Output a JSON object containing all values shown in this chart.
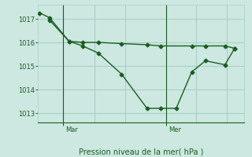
{
  "background_color": "#cce8e0",
  "grid_color": "#aacfc8",
  "line_color": "#1a5e20",
  "xlabel": "Pression niveau de la mer( hPa )",
  "ylim": [
    1012.6,
    1017.6
  ],
  "yticks": [
    1013,
    1014,
    1015,
    1016,
    1017
  ],
  "line1_x": [
    0.0,
    0.5,
    1.5,
    2.2,
    3.0,
    4.2,
    5.5,
    6.2,
    7.0,
    7.8,
    8.5,
    9.5,
    10.0
  ],
  "line1_y": [
    1017.25,
    1017.05,
    1016.05,
    1015.85,
    1015.55,
    1014.65,
    1013.2,
    1013.2,
    1013.2,
    1014.75,
    1015.22,
    1015.05,
    1015.75
  ],
  "line2_x": [
    0.5,
    1.5,
    2.2,
    3.0,
    4.2,
    5.5,
    6.2,
    7.8,
    8.5,
    9.5,
    10.0
  ],
  "line2_y": [
    1016.95,
    1016.05,
    1016.0,
    1016.0,
    1015.95,
    1015.9,
    1015.85,
    1015.85,
    1015.85,
    1015.85,
    1015.75
  ],
  "mar_x": 1.2,
  "mer_x": 6.5,
  "xlim": [
    -0.1,
    10.5
  ],
  "vgrid_x": [
    1.2,
    2.8,
    4.4,
    6.5,
    8.0,
    9.6
  ],
  "marker_size": 2.5,
  "linewidth": 1.0
}
